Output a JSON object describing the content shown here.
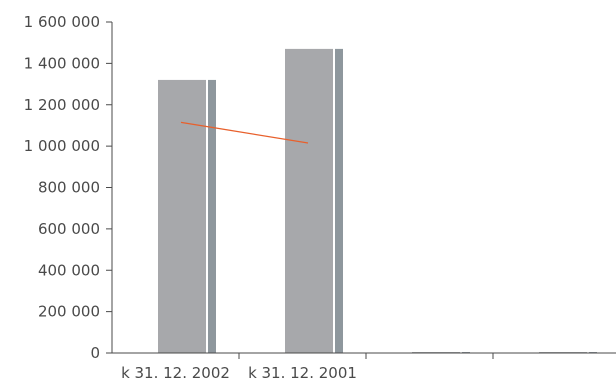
{
  "chart_data": {
    "type": "bar",
    "title": "",
    "xlabel": "",
    "ylabel": "",
    "ylim": [
      0,
      1600000
    ],
    "y_ticks": [
      {
        "value": 0,
        "label": "0"
      },
      {
        "value": 200000,
        "label": "200 000"
      },
      {
        "value": 400000,
        "label": "400 000"
      },
      {
        "value": 600000,
        "label": "600 000"
      },
      {
        "value": 800000,
        "label": "800 000"
      },
      {
        "value": 1000000,
        "label": "1 000 000"
      },
      {
        "value": 1200000,
        "label": "1 200 000"
      },
      {
        "value": 1400000,
        "label": "1 400 000"
      },
      {
        "value": 1600000,
        "label": "1 600 000"
      }
    ],
    "categories": [
      "k 31. 12. 2002",
      "k 31. 12. 2001",
      "",
      ""
    ],
    "series": [
      {
        "values": [
          1320000,
          1470000,
          0,
          0
        ],
        "color": "#a7a8ab",
        "shadow_color": "#8e979d"
      }
    ],
    "line_series": [
      {
        "points": [
          {
            "category_index": 0,
            "value": 1115000
          },
          {
            "category_index": 1,
            "value": 1015000
          }
        ],
        "color": "#e8602c"
      }
    ],
    "grid": false,
    "legend": "none",
    "colors": {
      "axis": "#4a4a4a",
      "text": "#4a4a4a"
    }
  }
}
